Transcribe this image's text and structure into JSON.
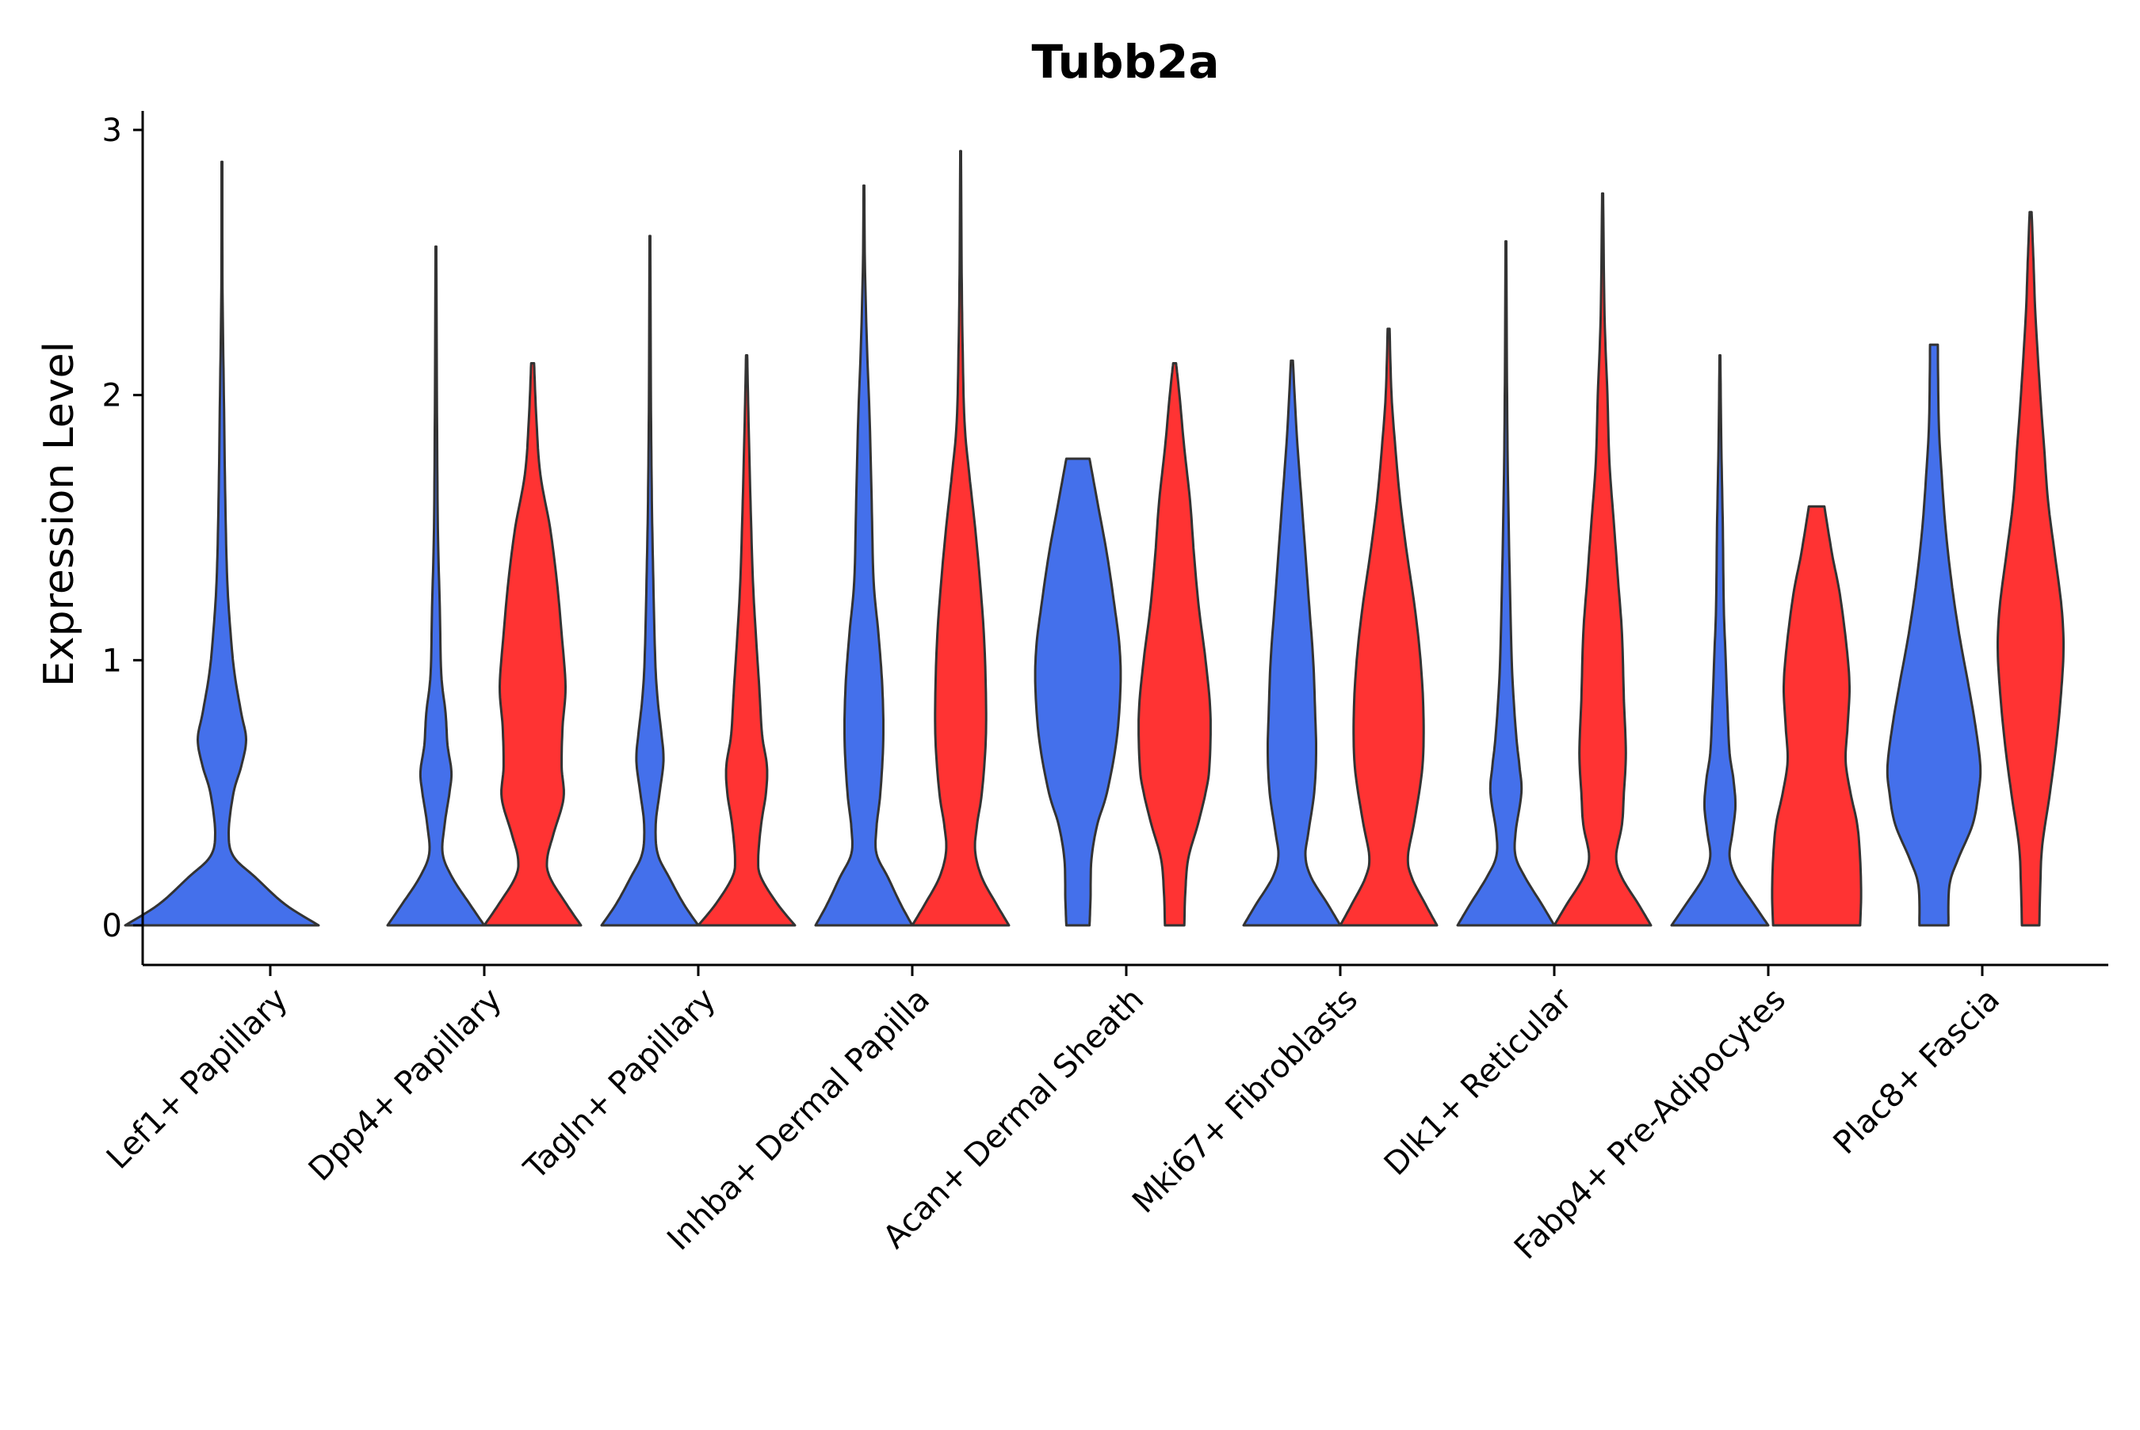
{
  "chart_data": {
    "type": "violin",
    "title": "Tubb2a",
    "xlabel": "",
    "ylabel": "Expression Level",
    "ylim": [
      -0.15,
      3.07
    ],
    "yticks": [
      0,
      1,
      2,
      3
    ],
    "categories": [
      "Lef1+ Papillary",
      "Dpp4+ Papillary",
      "Tagln+ Papillary",
      "Inhba+ Dermal Papilla",
      "Acan+ Dermal Sheath",
      "Mki67+ Fibroblasts",
      "Dlk1+ Reticular",
      "Fabp4+ Pre-Adipocytes",
      "Plac8+ Fascia"
    ],
    "grid": false,
    "legend": "none",
    "group_colors": [
      "#4470EB",
      "#FF3333"
    ],
    "violins": [
      {
        "category": "Lef1+ Papillary",
        "group": 0,
        "max": 2.88,
        "profile": [
          [
            0,
            1.0
          ],
          [
            0.08,
            0.65
          ],
          [
            0.18,
            0.35
          ],
          [
            0.26,
            0.12
          ],
          [
            0.35,
            0.07
          ],
          [
            0.5,
            0.12
          ],
          [
            0.6,
            0.2
          ],
          [
            0.7,
            0.25
          ],
          [
            0.8,
            0.2
          ],
          [
            0.95,
            0.13
          ],
          [
            1.1,
            0.09
          ],
          [
            1.3,
            0.055
          ],
          [
            1.6,
            0.035
          ],
          [
            2.0,
            0.02
          ],
          [
            2.4,
            0.006
          ],
          [
            2.88,
            0.004
          ]
        ]
      },
      {
        "category": "Dpp4+ Papillary",
        "group": 0,
        "max": 2.56,
        "profile": [
          [
            0,
            0.5
          ],
          [
            0.08,
            0.35
          ],
          [
            0.18,
            0.17
          ],
          [
            0.27,
            0.07
          ],
          [
            0.38,
            0.09
          ],
          [
            0.5,
            0.14
          ],
          [
            0.58,
            0.16
          ],
          [
            0.68,
            0.12
          ],
          [
            0.8,
            0.1
          ],
          [
            0.95,
            0.055
          ],
          [
            1.2,
            0.04
          ],
          [
            1.5,
            0.02
          ],
          [
            2.0,
            0.01
          ],
          [
            2.56,
            0.004
          ]
        ]
      },
      {
        "category": "Dpp4+ Papillary",
        "group": 1,
        "max": 2.12,
        "profile": [
          [
            0,
            0.5
          ],
          [
            0.08,
            0.35
          ],
          [
            0.18,
            0.18
          ],
          [
            0.25,
            0.15
          ],
          [
            0.35,
            0.22
          ],
          [
            0.48,
            0.32
          ],
          [
            0.6,
            0.3
          ],
          [
            0.75,
            0.31
          ],
          [
            0.9,
            0.34
          ],
          [
            1.1,
            0.3
          ],
          [
            1.3,
            0.25
          ],
          [
            1.5,
            0.18
          ],
          [
            1.7,
            0.08
          ],
          [
            1.9,
            0.04
          ],
          [
            2.12,
            0.015
          ]
        ]
      },
      {
        "category": "Tagln+ Papillary",
        "group": 0,
        "max": 2.6,
        "profile": [
          [
            0,
            0.5
          ],
          [
            0.08,
            0.35
          ],
          [
            0.18,
            0.2
          ],
          [
            0.27,
            0.08
          ],
          [
            0.38,
            0.06
          ],
          [
            0.5,
            0.1
          ],
          [
            0.62,
            0.14
          ],
          [
            0.72,
            0.12
          ],
          [
            0.85,
            0.08
          ],
          [
            1.0,
            0.055
          ],
          [
            1.3,
            0.035
          ],
          [
            1.6,
            0.02
          ],
          [
            2.0,
            0.01
          ],
          [
            2.6,
            0.004
          ]
        ]
      },
      {
        "category": "Tagln+ Papillary",
        "group": 1,
        "max": 2.15,
        "profile": [
          [
            0,
            0.5
          ],
          [
            0.08,
            0.32
          ],
          [
            0.18,
            0.15
          ],
          [
            0.25,
            0.12
          ],
          [
            0.38,
            0.15
          ],
          [
            0.5,
            0.2
          ],
          [
            0.6,
            0.21
          ],
          [
            0.72,
            0.16
          ],
          [
            0.9,
            0.13
          ],
          [
            1.1,
            0.095
          ],
          [
            1.3,
            0.065
          ],
          [
            1.6,
            0.04
          ],
          [
            1.9,
            0.02
          ],
          [
            2.15,
            0.006
          ]
        ]
      },
      {
        "category": "Inhba+ Dermal Papilla",
        "group": 0,
        "max": 2.79,
        "profile": [
          [
            0,
            0.5
          ],
          [
            0.08,
            0.38
          ],
          [
            0.18,
            0.25
          ],
          [
            0.27,
            0.13
          ],
          [
            0.37,
            0.13
          ],
          [
            0.5,
            0.17
          ],
          [
            0.7,
            0.2
          ],
          [
            0.9,
            0.19
          ],
          [
            1.1,
            0.15
          ],
          [
            1.3,
            0.1
          ],
          [
            1.6,
            0.08
          ],
          [
            1.9,
            0.06
          ],
          [
            2.2,
            0.03
          ],
          [
            2.5,
            0.01
          ],
          [
            2.79,
            0.004
          ]
        ]
      },
      {
        "category": "Inhba+ Dermal Papilla",
        "group": 1,
        "max": 2.92,
        "profile": [
          [
            0,
            0.5
          ],
          [
            0.08,
            0.37
          ],
          [
            0.18,
            0.22
          ],
          [
            0.28,
            0.15
          ],
          [
            0.38,
            0.17
          ],
          [
            0.5,
            0.22
          ],
          [
            0.7,
            0.26
          ],
          [
            0.9,
            0.26
          ],
          [
            1.1,
            0.24
          ],
          [
            1.3,
            0.2
          ],
          [
            1.5,
            0.15
          ],
          [
            1.7,
            0.09
          ],
          [
            1.9,
            0.04
          ],
          [
            2.2,
            0.02
          ],
          [
            2.5,
            0.01
          ],
          [
            2.92,
            0.004
          ]
        ]
      },
      {
        "category": "Acan+ Dermal Sheath",
        "group": 0,
        "max": 1.76,
        "profile": [
          [
            0,
            0.12
          ],
          [
            0.1,
            0.13
          ],
          [
            0.25,
            0.14
          ],
          [
            0.38,
            0.2
          ],
          [
            0.5,
            0.3
          ],
          [
            0.7,
            0.4
          ],
          [
            0.9,
            0.44
          ],
          [
            1.05,
            0.43
          ],
          [
            1.2,
            0.38
          ],
          [
            1.4,
            0.3
          ],
          [
            1.6,
            0.2
          ],
          [
            1.76,
            0.12
          ]
        ]
      },
      {
        "category": "Acan+ Dermal Sheath",
        "group": 1,
        "max": 2.12,
        "profile": [
          [
            0,
            0.1
          ],
          [
            0.12,
            0.11
          ],
          [
            0.25,
            0.14
          ],
          [
            0.38,
            0.24
          ],
          [
            0.5,
            0.32
          ],
          [
            0.6,
            0.36
          ],
          [
            0.8,
            0.37
          ],
          [
            1.0,
            0.32
          ],
          [
            1.2,
            0.25
          ],
          [
            1.4,
            0.2
          ],
          [
            1.6,
            0.16
          ],
          [
            1.8,
            0.1
          ],
          [
            2.0,
            0.05
          ],
          [
            2.12,
            0.015
          ]
        ]
      },
      {
        "category": "Mki67+ Fibroblasts",
        "group": 0,
        "max": 2.13,
        "profile": [
          [
            0,
            0.5
          ],
          [
            0.08,
            0.37
          ],
          [
            0.18,
            0.2
          ],
          [
            0.26,
            0.14
          ],
          [
            0.35,
            0.17
          ],
          [
            0.5,
            0.23
          ],
          [
            0.65,
            0.25
          ],
          [
            0.8,
            0.24
          ],
          [
            1.0,
            0.22
          ],
          [
            1.2,
            0.18
          ],
          [
            1.4,
            0.14
          ],
          [
            1.6,
            0.1
          ],
          [
            1.85,
            0.05
          ],
          [
            2.13,
            0.01
          ]
        ]
      },
      {
        "category": "Mki67+ Fibroblasts",
        "group": 1,
        "max": 2.25,
        "profile": [
          [
            0,
            0.5
          ],
          [
            0.08,
            0.38
          ],
          [
            0.18,
            0.24
          ],
          [
            0.26,
            0.2
          ],
          [
            0.4,
            0.27
          ],
          [
            0.6,
            0.35
          ],
          [
            0.8,
            0.36
          ],
          [
            1.0,
            0.33
          ],
          [
            1.2,
            0.27
          ],
          [
            1.4,
            0.19
          ],
          [
            1.6,
            0.12
          ],
          [
            1.8,
            0.07
          ],
          [
            2.0,
            0.03
          ],
          [
            2.25,
            0.01
          ]
        ]
      },
      {
        "category": "Dlk1+ Reticular",
        "group": 0,
        "max": 2.58,
        "profile": [
          [
            0,
            0.5
          ],
          [
            0.08,
            0.37
          ],
          [
            0.18,
            0.2
          ],
          [
            0.26,
            0.1
          ],
          [
            0.35,
            0.1
          ],
          [
            0.5,
            0.16
          ],
          [
            0.6,
            0.14
          ],
          [
            0.7,
            0.11
          ],
          [
            0.85,
            0.08
          ],
          [
            1.0,
            0.06
          ],
          [
            1.3,
            0.04
          ],
          [
            1.7,
            0.02
          ],
          [
            2.1,
            0.01
          ],
          [
            2.58,
            0.004
          ]
        ]
      },
      {
        "category": "Dlk1+ Reticular",
        "group": 1,
        "max": 2.76,
        "profile": [
          [
            0,
            0.5
          ],
          [
            0.08,
            0.37
          ],
          [
            0.18,
            0.2
          ],
          [
            0.26,
            0.14
          ],
          [
            0.38,
            0.2
          ],
          [
            0.5,
            0.22
          ],
          [
            0.65,
            0.24
          ],
          [
            0.85,
            0.22
          ],
          [
            1.1,
            0.2
          ],
          [
            1.3,
            0.16
          ],
          [
            1.5,
            0.12
          ],
          [
            1.75,
            0.07
          ],
          [
            2.0,
            0.05
          ],
          [
            2.3,
            0.02
          ],
          [
            2.76,
            0.005
          ]
        ]
      },
      {
        "category": "Fabp4+ Pre-Adipocytes",
        "group": 0,
        "max": 2.15,
        "profile": [
          [
            0,
            0.5
          ],
          [
            0.08,
            0.35
          ],
          [
            0.18,
            0.17
          ],
          [
            0.26,
            0.1
          ],
          [
            0.35,
            0.13
          ],
          [
            0.45,
            0.16
          ],
          [
            0.55,
            0.14
          ],
          [
            0.65,
            0.1
          ],
          [
            0.8,
            0.08
          ],
          [
            1.0,
            0.06
          ],
          [
            1.2,
            0.04
          ],
          [
            1.5,
            0.03
          ],
          [
            1.8,
            0.015
          ],
          [
            2.15,
            0.004
          ]
        ]
      },
      {
        "category": "Fabp4+ Pre-Adipocytes",
        "group": 1,
        "max": 1.58,
        "profile": [
          [
            0,
            0.45
          ],
          [
            0.12,
            0.46
          ],
          [
            0.25,
            0.45
          ],
          [
            0.38,
            0.42
          ],
          [
            0.5,
            0.35
          ],
          [
            0.62,
            0.3
          ],
          [
            0.75,
            0.32
          ],
          [
            0.9,
            0.34
          ],
          [
            1.05,
            0.31
          ],
          [
            1.25,
            0.24
          ],
          [
            1.4,
            0.16
          ],
          [
            1.58,
            0.08
          ]
        ]
      },
      {
        "category": "Plac8+ Fascia",
        "group": 0,
        "max": 2.19,
        "profile": [
          [
            0,
            0.15
          ],
          [
            0.15,
            0.16
          ],
          [
            0.25,
            0.25
          ],
          [
            0.38,
            0.4
          ],
          [
            0.5,
            0.46
          ],
          [
            0.6,
            0.48
          ],
          [
            0.75,
            0.43
          ],
          [
            0.9,
            0.36
          ],
          [
            1.1,
            0.26
          ],
          [
            1.3,
            0.18
          ],
          [
            1.5,
            0.12
          ],
          [
            1.7,
            0.08
          ],
          [
            1.9,
            0.05
          ],
          [
            2.19,
            0.04
          ]
        ]
      },
      {
        "category": "Plac8+ Fascia",
        "group": 1,
        "max": 2.69,
        "profile": [
          [
            0,
            0.09
          ],
          [
            0.15,
            0.1
          ],
          [
            0.3,
            0.12
          ],
          [
            0.5,
            0.2
          ],
          [
            0.7,
            0.27
          ],
          [
            0.9,
            0.32
          ],
          [
            1.05,
            0.34
          ],
          [
            1.2,
            0.32
          ],
          [
            1.4,
            0.25
          ],
          [
            1.6,
            0.18
          ],
          [
            1.8,
            0.14
          ],
          [
            2.0,
            0.1
          ],
          [
            2.3,
            0.05
          ],
          [
            2.5,
            0.03
          ],
          [
            2.69,
            0.01
          ]
        ]
      }
    ]
  }
}
